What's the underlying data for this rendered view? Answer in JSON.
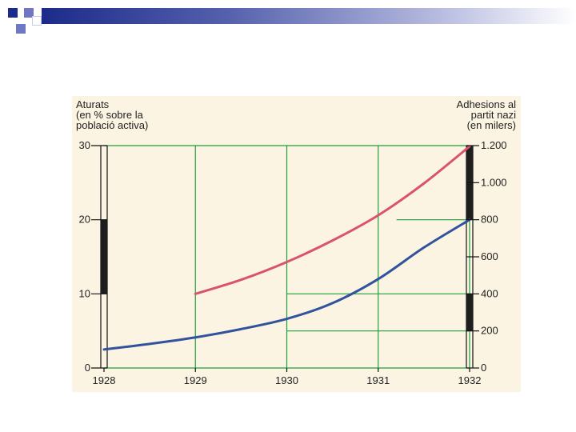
{
  "chart_data": {
    "type": "line",
    "x": [
      1928,
      1929,
      1930,
      1931,
      1932
    ],
    "x_tick_labels": [
      "1928",
      "1929",
      "1930",
      "1931",
      "1932"
    ],
    "left_axis": {
      "label_lines": [
        "Aturats",
        "(en % sobre la",
        "població activa)"
      ],
      "ylim": [
        0,
        30
      ],
      "ticks": [
        0,
        10,
        20,
        30
      ],
      "tick_labels": [
        "0",
        "10",
        "20",
        "30"
      ],
      "highlight_range": [
        10,
        20
      ]
    },
    "right_axis": {
      "label_lines": [
        "Adhesions al",
        "partit nazi",
        "(en milers)"
      ],
      "ylim": [
        0,
        1200
      ],
      "ticks": [
        0,
        200,
        400,
        600,
        800,
        1000,
        1200
      ],
      "tick_labels": [
        "0",
        "200",
        "400",
        "600",
        "800",
        "1.000",
        "1.200"
      ],
      "highlight_ranges": [
        [
          200,
          400
        ],
        [
          800,
          1200
        ]
      ]
    },
    "series": [
      {
        "axis": "left",
        "color": "#d9546a",
        "x": [
          1929,
          1929.5,
          1930,
          1930.5,
          1931,
          1931.5,
          1932
        ],
        "y": [
          10,
          11.9,
          14.3,
          17.2,
          20.6,
          24.9,
          29.9
        ]
      },
      {
        "axis": "right",
        "color": "#31529c",
        "x": [
          1928,
          1928.5,
          1929,
          1929.5,
          1930,
          1930.5,
          1931,
          1931.5,
          1932
        ],
        "y": [
          100,
          130,
          165,
          210,
          265,
          350,
          480,
          650,
          800
        ]
      }
    ],
    "grid": true,
    "grid_color": "#1f9e3a",
    "reference_lines_right": [
      200,
      400,
      800
    ],
    "legend": "none"
  }
}
